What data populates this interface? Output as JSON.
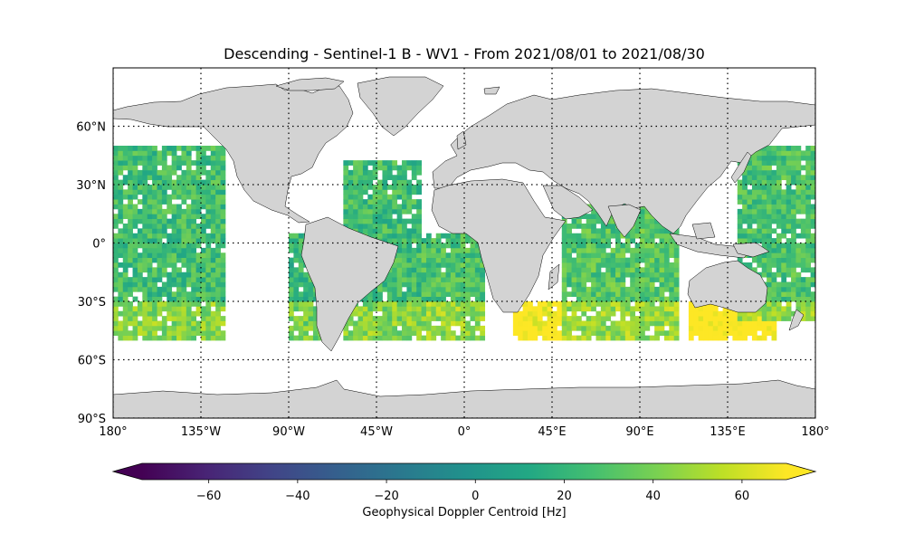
{
  "map": {
    "title": "Descending - Sentinel-1 B - WV1 - From 2021/08/01 to 2021/08/30",
    "projection": "PlateCarree",
    "lon_ticks": [
      {
        "value": -180,
        "label": "180°"
      },
      {
        "value": -135,
        "label": "135°W"
      },
      {
        "value": -90,
        "label": "90°W"
      },
      {
        "value": -45,
        "label": "45°W"
      },
      {
        "value": 0,
        "label": "0°"
      },
      {
        "value": 45,
        "label": "45°E"
      },
      {
        "value": 90,
        "label": "90°E"
      },
      {
        "value": 135,
        "label": "135°E"
      },
      {
        "value": 180,
        "label": "180°"
      }
    ],
    "lat_ticks": [
      {
        "value": 60,
        "label": "60°N"
      },
      {
        "value": 30,
        "label": "30°N"
      },
      {
        "value": 0,
        "label": "0°"
      },
      {
        "value": -30,
        "label": "30°S"
      },
      {
        "value": -60,
        "label": "60°S"
      },
      {
        "value": -90,
        "label": "90°S"
      }
    ],
    "lon_range": [
      -180,
      180
    ],
    "lat_range": [
      -90,
      90
    ],
    "gridlines": "dotted",
    "land_color": "#d3d3d3",
    "coastline_color": "#000000"
  },
  "chart_data": {
    "type": "heatmap",
    "variable": "Geophysical Doppler Centroid",
    "units": "Hz",
    "colormap": "viridis",
    "vmin": -75,
    "vmax": 70,
    "data_lat_range": [
      -50,
      50
    ],
    "regions": [
      {
        "lon": [
          -180,
          -124
        ],
        "lat": [
          -50,
          50
        ],
        "mean": 25
      },
      {
        "lon": [
          -90,
          -70
        ],
        "lat": [
          -50,
          5
        ],
        "mean": 22
      },
      {
        "lon": [
          -62,
          -22
        ],
        "lat": [
          -50,
          42
        ],
        "mean": 25
      },
      {
        "lon": [
          -22,
          10
        ],
        "lat": [
          -50,
          5
        ],
        "mean": 28
      },
      {
        "lon": [
          25,
          50
        ],
        "lat": [
          -50,
          -30
        ],
        "mean": 55
      },
      {
        "lon": [
          50,
          110
        ],
        "lat": [
          -50,
          20
        ],
        "mean": 30
      },
      {
        "lon": [
          115,
          160
        ],
        "lat": [
          -50,
          -30
        ],
        "mean": 58
      },
      {
        "lon": [
          140,
          180
        ],
        "lat": [
          -40,
          50
        ],
        "mean": 28
      }
    ]
  },
  "colorbar": {
    "label": "Geophysical Doppler Centroid [Hz]",
    "ticks": [
      -60,
      -40,
      -20,
      0,
      20,
      40,
      60
    ],
    "tick_labels": [
      "−60",
      "−40",
      "−20",
      "0",
      "20",
      "40",
      "60"
    ],
    "extend": "both"
  }
}
